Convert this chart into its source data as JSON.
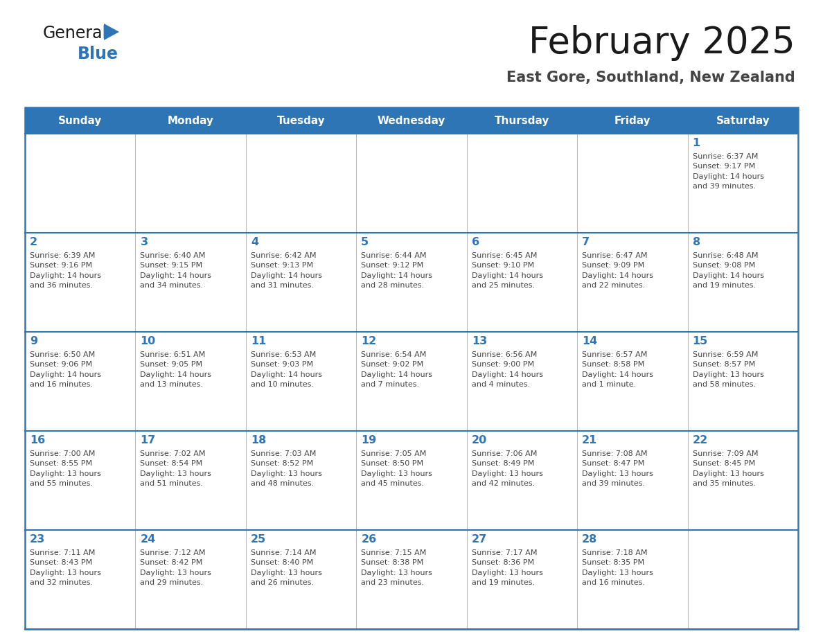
{
  "title": "February 2025",
  "subtitle": "East Gore, Southland, New Zealand",
  "header_bg": "#2E75B6",
  "header_text": "#FFFFFF",
  "border_color": "#2E75B6",
  "title_color": "#1a1a1a",
  "subtitle_color": "#444444",
  "day_number_color": "#2E75B6",
  "cell_text_color": "#444444",
  "days_of_week": [
    "Sunday",
    "Monday",
    "Tuesday",
    "Wednesday",
    "Thursday",
    "Friday",
    "Saturday"
  ],
  "weeks": [
    [
      null,
      null,
      null,
      null,
      null,
      null,
      1
    ],
    [
      2,
      3,
      4,
      5,
      6,
      7,
      8
    ],
    [
      9,
      10,
      11,
      12,
      13,
      14,
      15
    ],
    [
      16,
      17,
      18,
      19,
      20,
      21,
      22
    ],
    [
      23,
      24,
      25,
      26,
      27,
      28,
      null
    ]
  ],
  "day_data": {
    "1": {
      "sunrise": "6:37 AM",
      "sunset": "9:17 PM",
      "daylight_hours": 14,
      "daylight_minutes": 39
    },
    "2": {
      "sunrise": "6:39 AM",
      "sunset": "9:16 PM",
      "daylight_hours": 14,
      "daylight_minutes": 36
    },
    "3": {
      "sunrise": "6:40 AM",
      "sunset": "9:15 PM",
      "daylight_hours": 14,
      "daylight_minutes": 34
    },
    "4": {
      "sunrise": "6:42 AM",
      "sunset": "9:13 PM",
      "daylight_hours": 14,
      "daylight_minutes": 31
    },
    "5": {
      "sunrise": "6:44 AM",
      "sunset": "9:12 PM",
      "daylight_hours": 14,
      "daylight_minutes": 28
    },
    "6": {
      "sunrise": "6:45 AM",
      "sunset": "9:10 PM",
      "daylight_hours": 14,
      "daylight_minutes": 25
    },
    "7": {
      "sunrise": "6:47 AM",
      "sunset": "9:09 PM",
      "daylight_hours": 14,
      "daylight_minutes": 22
    },
    "8": {
      "sunrise": "6:48 AM",
      "sunset": "9:08 PM",
      "daylight_hours": 14,
      "daylight_minutes": 19
    },
    "9": {
      "sunrise": "6:50 AM",
      "sunset": "9:06 PM",
      "daylight_hours": 14,
      "daylight_minutes": 16
    },
    "10": {
      "sunrise": "6:51 AM",
      "sunset": "9:05 PM",
      "daylight_hours": 14,
      "daylight_minutes": 13
    },
    "11": {
      "sunrise": "6:53 AM",
      "sunset": "9:03 PM",
      "daylight_hours": 14,
      "daylight_minutes": 10
    },
    "12": {
      "sunrise": "6:54 AM",
      "sunset": "9:02 PM",
      "daylight_hours": 14,
      "daylight_minutes": 7
    },
    "13": {
      "sunrise": "6:56 AM",
      "sunset": "9:00 PM",
      "daylight_hours": 14,
      "daylight_minutes": 4
    },
    "14": {
      "sunrise": "6:57 AM",
      "sunset": "8:58 PM",
      "daylight_hours": 14,
      "daylight_minutes": 1
    },
    "15": {
      "sunrise": "6:59 AM",
      "sunset": "8:57 PM",
      "daylight_hours": 13,
      "daylight_minutes": 58
    },
    "16": {
      "sunrise": "7:00 AM",
      "sunset": "8:55 PM",
      "daylight_hours": 13,
      "daylight_minutes": 55
    },
    "17": {
      "sunrise": "7:02 AM",
      "sunset": "8:54 PM",
      "daylight_hours": 13,
      "daylight_minutes": 51
    },
    "18": {
      "sunrise": "7:03 AM",
      "sunset": "8:52 PM",
      "daylight_hours": 13,
      "daylight_minutes": 48
    },
    "19": {
      "sunrise": "7:05 AM",
      "sunset": "8:50 PM",
      "daylight_hours": 13,
      "daylight_minutes": 45
    },
    "20": {
      "sunrise": "7:06 AM",
      "sunset": "8:49 PM",
      "daylight_hours": 13,
      "daylight_minutes": 42
    },
    "21": {
      "sunrise": "7:08 AM",
      "sunset": "8:47 PM",
      "daylight_hours": 13,
      "daylight_minutes": 39
    },
    "22": {
      "sunrise": "7:09 AM",
      "sunset": "8:45 PM",
      "daylight_hours": 13,
      "daylight_minutes": 35
    },
    "23": {
      "sunrise": "7:11 AM",
      "sunset": "8:43 PM",
      "daylight_hours": 13,
      "daylight_minutes": 32
    },
    "24": {
      "sunrise": "7:12 AM",
      "sunset": "8:42 PM",
      "daylight_hours": 13,
      "daylight_minutes": 29
    },
    "25": {
      "sunrise": "7:14 AM",
      "sunset": "8:40 PM",
      "daylight_hours": 13,
      "daylight_minutes": 26
    },
    "26": {
      "sunrise": "7:15 AM",
      "sunset": "8:38 PM",
      "daylight_hours": 13,
      "daylight_minutes": 23
    },
    "27": {
      "sunrise": "7:17 AM",
      "sunset": "8:36 PM",
      "daylight_hours": 13,
      "daylight_minutes": 19
    },
    "28": {
      "sunrise": "7:18 AM",
      "sunset": "8:35 PM",
      "daylight_hours": 13,
      "daylight_minutes": 16
    }
  },
  "logo_color_general": "#1a1a1a",
  "logo_color_blue": "#2E75B6",
  "logo_triangle_color": "#2E75B6"
}
